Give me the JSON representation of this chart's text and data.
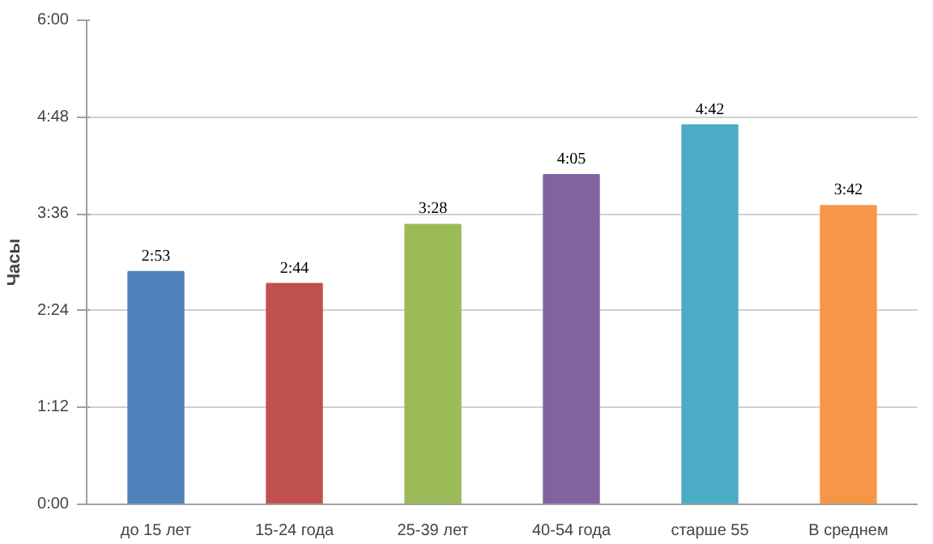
{
  "chart_data": {
    "type": "bar",
    "ylabel": "Часы",
    "categories": [
      "до 15 лет",
      "15-24 года",
      "25-39 лет",
      "40-54 года",
      "старше 55",
      "В среднем"
    ],
    "values": [
      173,
      164,
      208,
      245,
      282,
      222
    ],
    "colors": [
      "#4f81bd",
      "#c0504d",
      "#9bbb59",
      "#8064a2",
      "#4bacc6",
      "#f79646"
    ],
    "value_labels": [
      "2:53",
      "2:44",
      "3:28",
      "4:05",
      "4:42",
      "3:42"
    ],
    "ylim": [
      0,
      360
    ],
    "yticks": [
      {
        "value": 0,
        "label": "0:00"
      },
      {
        "value": 72,
        "label": "1:12"
      },
      {
        "value": 144,
        "label": "2:24"
      },
      {
        "value": 216,
        "label": "3:36"
      },
      {
        "value": 288,
        "label": "4:48"
      },
      {
        "value": 360,
        "label": "6:00"
      }
    ],
    "grid": "y"
  }
}
